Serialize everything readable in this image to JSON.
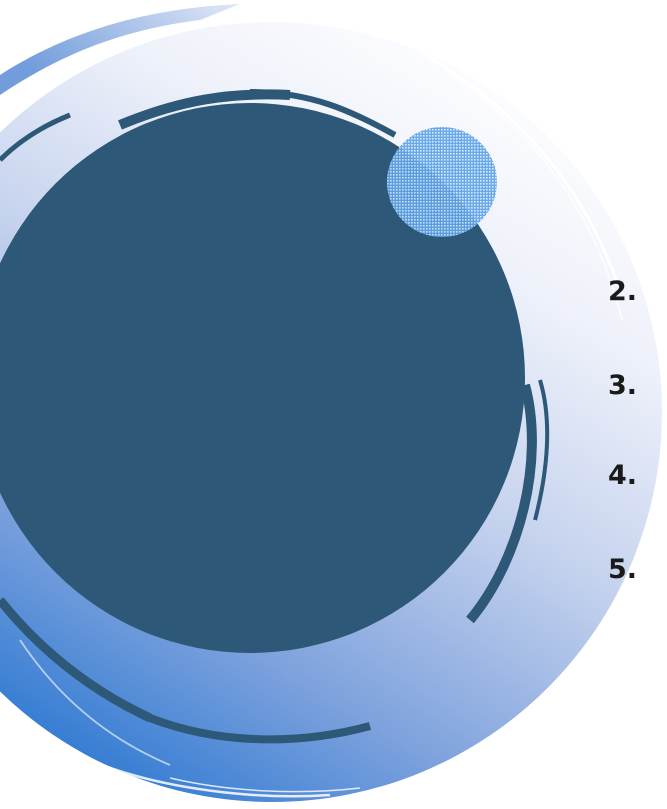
{
  "list": {
    "items": [
      {
        "label": "2."
      },
      {
        "label": "3."
      },
      {
        "label": "4."
      },
      {
        "label": "5."
      }
    ]
  },
  "colors": {
    "dark_circle": "#2d5878",
    "ring_light": "#f4f6fb",
    "ring_mid": "#aebfe3",
    "ring_deep": "#1a6fcf",
    "accent_dot": "#2f8ce3",
    "text": "#1a1a1a"
  },
  "icons": {
    "decor": [
      "brushstroke-ring",
      "dark-circle",
      "dotted-accent-circle"
    ]
  }
}
